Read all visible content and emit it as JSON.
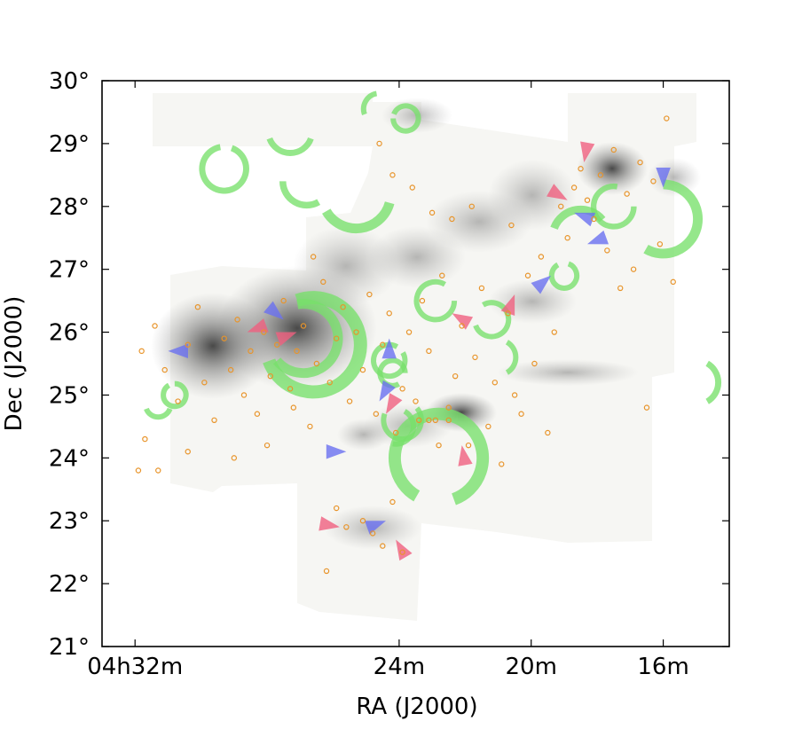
{
  "chart_data": {
    "type": "scatter",
    "title": "",
    "xlabel": "RA (J2000)",
    "ylabel": "Dec (J2000)",
    "x_unit": "minutes of RA",
    "y_unit": "degrees",
    "xlim": [
      33.0,
      14.0
    ],
    "ylim": [
      21,
      30
    ],
    "x_ticks": [
      {
        "value": 32,
        "label": "04h32m"
      },
      {
        "value": 24,
        "label": "24m"
      },
      {
        "value": 20,
        "label": "20m"
      },
      {
        "value": 16,
        "label": "16m"
      }
    ],
    "y_ticks": [
      {
        "value": 30,
        "label": "30°"
      },
      {
        "value": 29,
        "label": "29°"
      },
      {
        "value": 28,
        "label": "28°"
      },
      {
        "value": 27,
        "label": "27°"
      },
      {
        "value": 26,
        "label": "26°"
      },
      {
        "value": 25,
        "label": "25°"
      },
      {
        "value": 24,
        "label": "24°"
      },
      {
        "value": 23,
        "label": "23°"
      },
      {
        "value": 22,
        "label": "22°"
      },
      {
        "value": 21,
        "label": "21°"
      }
    ],
    "grid": false,
    "colors": {
      "circles": "#e8942a",
      "bubbles": "#77e06a",
      "redshifted": "#f06080",
      "blueshifted": "#6a70f0",
      "background": "#fbfbf9"
    },
    "series": [
      {
        "marker": "open-circle",
        "points": [
          [
            31.8,
            25.7
          ],
          [
            31.4,
            26.1
          ],
          [
            31.1,
            25.4
          ],
          [
            30.7,
            24.9
          ],
          [
            30.4,
            25.8
          ],
          [
            30.1,
            26.4
          ],
          [
            29.9,
            25.2
          ],
          [
            29.6,
            24.6
          ],
          [
            29.3,
            25.9
          ],
          [
            29.1,
            25.4
          ],
          [
            28.9,
            26.2
          ],
          [
            28.7,
            25.0
          ],
          [
            28.5,
            25.7
          ],
          [
            28.3,
            24.7
          ],
          [
            28.1,
            26.0
          ],
          [
            27.9,
            25.3
          ],
          [
            27.7,
            25.8
          ],
          [
            27.5,
            26.5
          ],
          [
            27.3,
            25.1
          ],
          [
            27.1,
            25.7
          ],
          [
            26.9,
            26.1
          ],
          [
            26.7,
            24.5
          ],
          [
            26.5,
            25.5
          ],
          [
            26.3,
            26.8
          ],
          [
            26.1,
            25.2
          ],
          [
            25.9,
            25.9
          ],
          [
            25.7,
            26.4
          ],
          [
            25.5,
            24.9
          ],
          [
            25.3,
            26.0
          ],
          [
            25.1,
            25.4
          ],
          [
            24.9,
            26.6
          ],
          [
            24.7,
            24.7
          ],
          [
            24.5,
            25.8
          ],
          [
            24.3,
            26.3
          ],
          [
            24.1,
            24.4
          ],
          [
            23.9,
            25.1
          ],
          [
            23.7,
            26.0
          ],
          [
            23.5,
            24.9
          ],
          [
            23.3,
            26.5
          ],
          [
            23.1,
            25.7
          ],
          [
            22.9,
            24.6
          ],
          [
            22.7,
            26.9
          ],
          [
            22.5,
            24.8
          ],
          [
            22.3,
            25.3
          ],
          [
            22.1,
            26.1
          ],
          [
            21.9,
            24.2
          ],
          [
            21.7,
            25.6
          ],
          [
            21.5,
            26.7
          ],
          [
            21.3,
            24.5
          ],
          [
            21.1,
            25.2
          ],
          [
            20.9,
            23.9
          ],
          [
            20.7,
            26.3
          ],
          [
            20.5,
            25.0
          ],
          [
            20.3,
            24.7
          ],
          [
            20.1,
            26.9
          ],
          [
            19.9,
            25.5
          ],
          [
            19.7,
            27.2
          ],
          [
            19.5,
            24.4
          ],
          [
            19.3,
            26.0
          ],
          [
            19.1,
            28.0
          ],
          [
            18.9,
            27.5
          ],
          [
            18.7,
            28.3
          ],
          [
            18.5,
            28.6
          ],
          [
            18.3,
            28.1
          ],
          [
            18.1,
            27.8
          ],
          [
            17.9,
            28.5
          ],
          [
            17.7,
            27.3
          ],
          [
            17.5,
            28.9
          ],
          [
            17.3,
            26.7
          ],
          [
            17.1,
            28.2
          ],
          [
            16.9,
            27.0
          ],
          [
            16.7,
            28.7
          ],
          [
            16.5,
            24.8
          ],
          [
            16.3,
            28.4
          ],
          [
            16.1,
            27.4
          ],
          [
            15.9,
            29.4
          ],
          [
            15.7,
            26.8
          ],
          [
            24.8,
            22.8
          ],
          [
            25.1,
            23.0
          ],
          [
            24.5,
            22.6
          ],
          [
            25.6,
            22.9
          ],
          [
            25.9,
            23.2
          ],
          [
            24.2,
            23.3
          ],
          [
            26.2,
            22.2
          ],
          [
            23.9,
            22.5
          ],
          [
            23.4,
            24.6
          ],
          [
            23.1,
            24.6
          ],
          [
            22.8,
            24.2
          ],
          [
            22.5,
            24.6
          ],
          [
            24.6,
            29.0
          ],
          [
            24.2,
            28.5
          ],
          [
            23.6,
            28.3
          ],
          [
            23.0,
            27.9
          ],
          [
            22.4,
            27.8
          ],
          [
            21.8,
            28.0
          ],
          [
            20.6,
            27.7
          ],
          [
            26.6,
            27.2
          ],
          [
            27.2,
            24.8
          ],
          [
            28.0,
            24.2
          ],
          [
            29.0,
            24.0
          ],
          [
            30.4,
            24.1
          ],
          [
            31.7,
            24.3
          ],
          [
            31.9,
            23.8
          ],
          [
            31.3,
            23.8
          ]
        ]
      },
      {
        "marker": "bubble-arc",
        "arcs": [
          {
            "ra": 29.3,
            "dec": 28.6,
            "r_deg": 0.35,
            "start": 100,
            "end": 430
          },
          {
            "ra": 27.3,
            "dec": 29.2,
            "r_deg": 0.35,
            "start": 200,
            "end": 340
          },
          {
            "ra": 26.8,
            "dec": 28.4,
            "r_deg": 0.38,
            "start": 180,
            "end": 300
          },
          {
            "ra": 25.3,
            "dec": 28.2,
            "r_deg": 0.55,
            "start": 210,
            "end": 345
          },
          {
            "ra": 23.8,
            "dec": 29.4,
            "r_deg": 0.2,
            "start": 180,
            "end": 520
          },
          {
            "ra": 24.6,
            "dec": 29.55,
            "r_deg": 0.25,
            "start": 100,
            "end": 200
          },
          {
            "ra": 26.6,
            "dec": 25.8,
            "r_deg": 0.75,
            "start": 200,
            "end": 470
          },
          {
            "ra": 26.9,
            "dec": 25.9,
            "r_deg": 0.55,
            "start": 220,
            "end": 460
          },
          {
            "ra": 24.3,
            "dec": 25.55,
            "r_deg": 0.25,
            "start": 60,
            "end": 390
          },
          {
            "ra": 24.2,
            "dec": 25.35,
            "r_deg": 0.2,
            "start": 0,
            "end": 300
          },
          {
            "ra": 22.9,
            "dec": 26.5,
            "r_deg": 0.3,
            "start": 60,
            "end": 360
          },
          {
            "ra": 21.2,
            "dec": 26.2,
            "r_deg": 0.27,
            "start": 200,
            "end": 480
          },
          {
            "ra": 21.0,
            "dec": 25.6,
            "r_deg": 0.28,
            "start": 300,
            "end": 420
          },
          {
            "ra": 22.8,
            "dec": 24.0,
            "r_deg": 0.7,
            "start": 290,
            "end": 600
          },
          {
            "ra": 23.9,
            "dec": 24.6,
            "r_deg": 0.3,
            "start": 160,
            "end": 400
          },
          {
            "ra": 24.1,
            "dec": 24.5,
            "r_deg": 0.28,
            "start": 260,
            "end": 420
          },
          {
            "ra": 30.8,
            "dec": 25.0,
            "r_deg": 0.18,
            "start": 120,
            "end": 450
          },
          {
            "ra": 31.3,
            "dec": 24.85,
            "r_deg": 0.2,
            "start": 200,
            "end": 340
          },
          {
            "ra": 17.5,
            "dec": 28.0,
            "r_deg": 0.32,
            "start": 80,
            "end": 360
          },
          {
            "ra": 16.0,
            "dec": 27.8,
            "r_deg": 0.55,
            "start": 240,
            "end": 450
          },
          {
            "ra": 18.5,
            "dec": 27.5,
            "r_deg": 0.45,
            "start": 40,
            "end": 160
          },
          {
            "ra": 19.0,
            "dec": 26.9,
            "r_deg": 0.2,
            "start": 120,
            "end": 430
          },
          {
            "ra": 15.0,
            "dec": 25.2,
            "r_deg": 0.35,
            "start": 300,
            "end": 420
          }
        ]
      },
      {
        "marker": "red-lobe",
        "points": [
          [
            27.1,
            26.0
          ],
          [
            24.4,
            24.7
          ],
          [
            22.4,
            26.3
          ],
          [
            20.5,
            26.6
          ],
          [
            18.9,
            28.1
          ],
          [
            18.4,
            28.7
          ],
          [
            22.1,
            24.2
          ],
          [
            25.8,
            22.9
          ],
          [
            24.1,
            22.7
          ],
          [
            28.6,
            26.0
          ]
        ]
      },
      {
        "marker": "blue-lobe",
        "points": [
          [
            27.5,
            26.2
          ],
          [
            31.0,
            25.7
          ],
          [
            24.3,
            25.9
          ],
          [
            25.6,
            24.1
          ],
          [
            18.7,
            27.9
          ],
          [
            18.3,
            27.4
          ],
          [
            16.0,
            28.3
          ],
          [
            19.4,
            26.9
          ],
          [
            24.6,
            24.9
          ],
          [
            24.4,
            23.0
          ]
        ]
      }
    ]
  }
}
